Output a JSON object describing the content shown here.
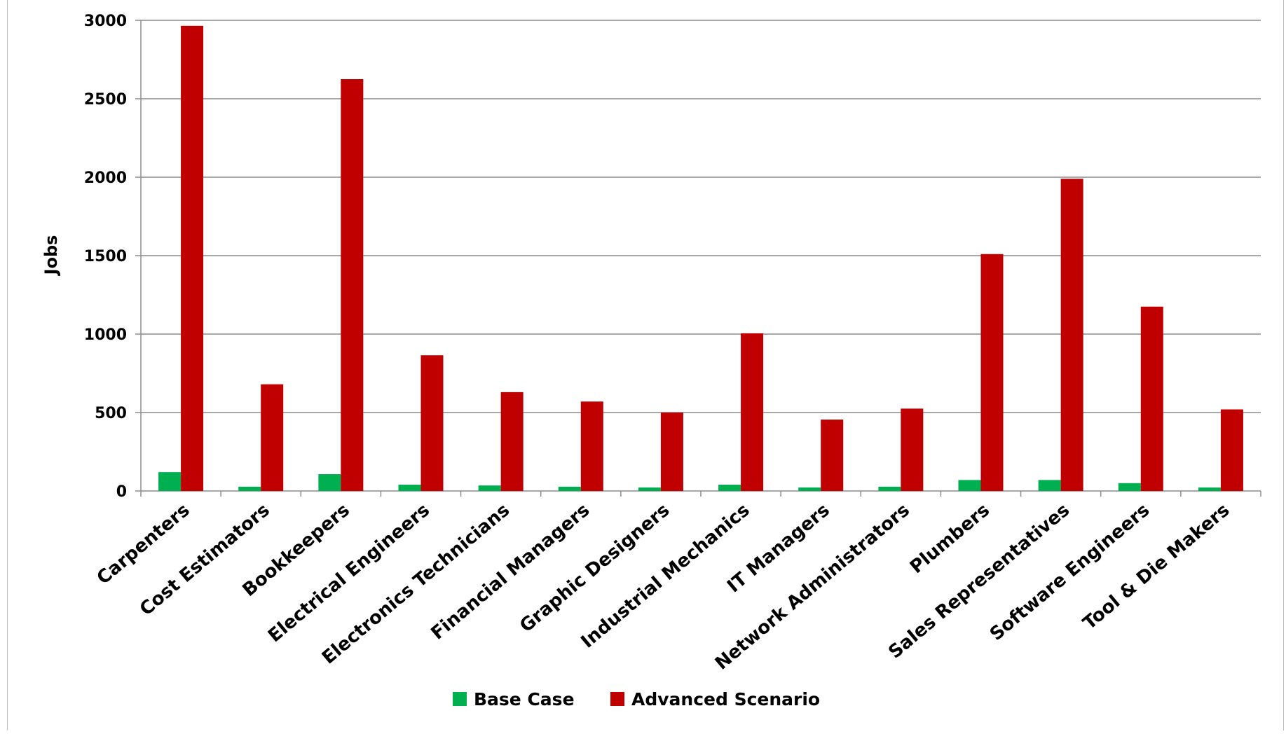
{
  "chart_data": {
    "type": "bar",
    "title": "",
    "xlabel": "",
    "ylabel": "Jobs",
    "ylim": [
      0,
      3000
    ],
    "yticks": [
      0,
      500,
      1000,
      1500,
      2000,
      2500,
      3000
    ],
    "grid": true,
    "legend_position": "bottom",
    "categories": [
      "Carpenters",
      "Cost Estimators",
      "Bookkeepers",
      "Electrical Engineers",
      "Electronics Technicians",
      "Financial Managers",
      "Graphic Designers",
      "Industrial Mechanics",
      "IT Managers",
      "Network Administrators",
      "Plumbers",
      "Sales Representatives",
      "Software Engineers",
      "Tool & Die Makers"
    ],
    "series": [
      {
        "name": "Base Case",
        "color": "#00b050",
        "values": [
          120,
          27,
          107,
          40,
          35,
          27,
          22,
          40,
          22,
          27,
          70,
          70,
          50,
          22
        ]
      },
      {
        "name": "Advanced Scenario",
        "color": "#c00000",
        "values": [
          2965,
          680,
          2625,
          865,
          630,
          570,
          500,
          1005,
          455,
          525,
          1510,
          1990,
          1175,
          520
        ]
      }
    ]
  }
}
